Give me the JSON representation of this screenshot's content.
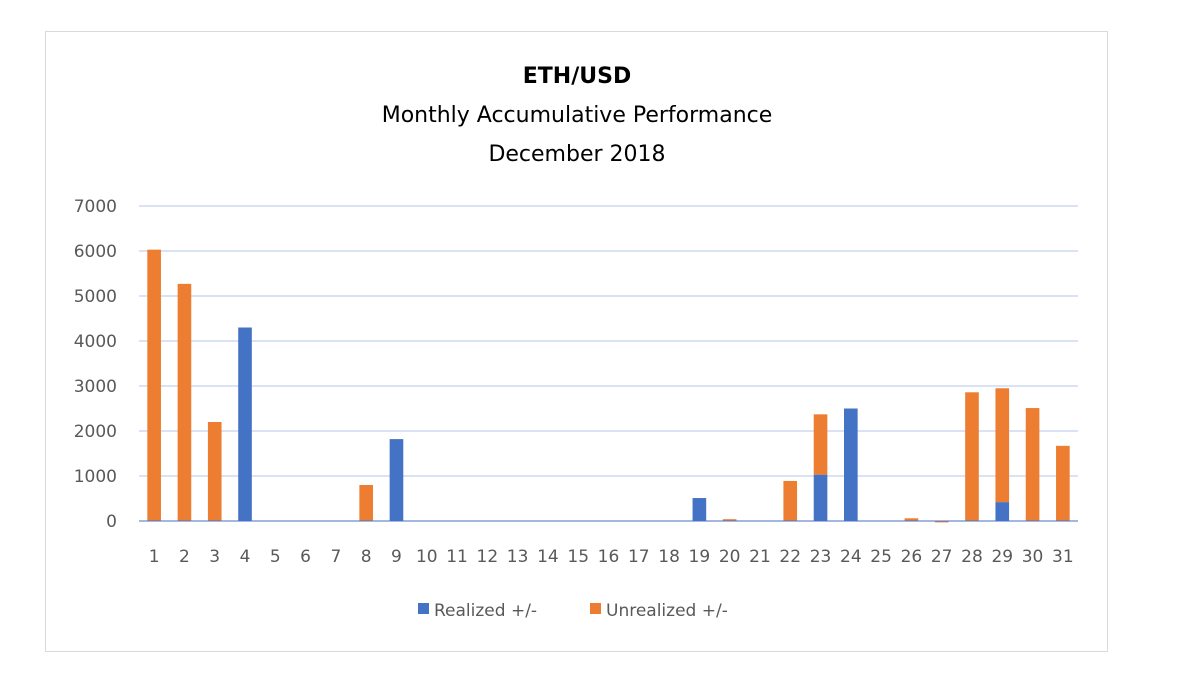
{
  "chart_data": {
    "type": "bar",
    "stacked": true,
    "title": "ETH/USD",
    "subtitle": [
      "Monthly Accumulative Performance",
      "December 2018"
    ],
    "xlabel": "",
    "ylabel": "",
    "ylim": [
      0,
      7000
    ],
    "y_ticks": [
      "0",
      "1000",
      "2000",
      "3000",
      "4000",
      "5000",
      "6000",
      "7000"
    ],
    "grid": true,
    "legend_position": "bottom",
    "categories": [
      "1",
      "2",
      "3",
      "4",
      "5",
      "6",
      "7",
      "8",
      "9",
      "10",
      "11",
      "12",
      "13",
      "14",
      "15",
      "16",
      "17",
      "18",
      "19",
      "20",
      "21",
      "22",
      "23",
      "24",
      "25",
      "26",
      "27",
      "28",
      "29",
      "30",
      "31"
    ],
    "series": [
      {
        "name": "Realized +/-",
        "color": "#4472C4",
        "values": [
          0,
          0,
          0,
          4300,
          0,
          0,
          0,
          0,
          1820,
          0,
          0,
          0,
          0,
          0,
          0,
          0,
          0,
          0,
          510,
          0,
          0,
          0,
          1030,
          2500,
          0,
          0,
          0,
          0,
          420,
          0,
          0
        ]
      },
      {
        "name": "Unrealized +/-",
        "color": "#ED7D31",
        "values": [
          6030,
          5270,
          2200,
          0,
          0,
          0,
          0,
          800,
          0,
          0,
          0,
          0,
          0,
          0,
          0,
          0,
          0,
          0,
          0,
          40,
          0,
          890,
          1340,
          0,
          0,
          60,
          -30,
          2860,
          2530,
          2510,
          1670
        ]
      }
    ]
  }
}
